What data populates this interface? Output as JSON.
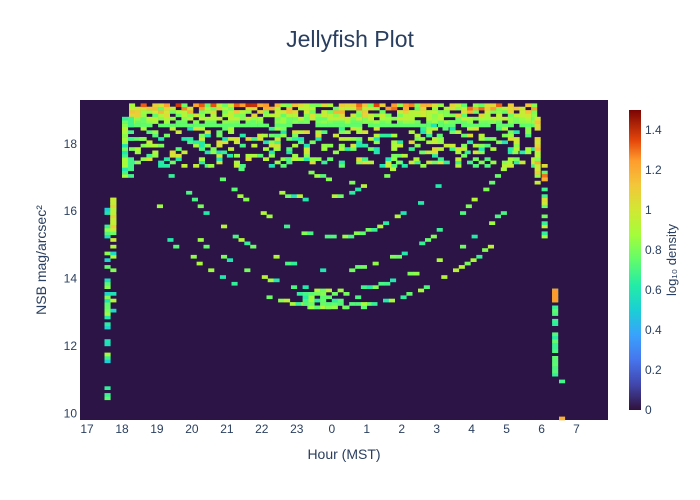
{
  "chart_data": {
    "type": "heatmap",
    "title": "Jellyfish Plot",
    "xlabel": "Hour (MST)",
    "ylabel": "NSB mag/arcsec²",
    "x_tick_labels": [
      "17",
      "18",
      "19",
      "20",
      "21",
      "22",
      "23",
      "0",
      "1",
      "2",
      "3",
      "4",
      "5",
      "6",
      "7"
    ],
    "x_range_hours_after_17": [
      -0.2,
      14.9
    ],
    "y_ticks": [
      10,
      12,
      14,
      16,
      18
    ],
    "y_range": [
      9.8,
      19.3
    ],
    "colorbar": {
      "title": "log₁₀ density",
      "ticks": [
        0,
        0.2,
        0.4,
        0.6,
        0.8,
        1,
        1.2,
        1.4
      ],
      "tick_labels": [
        "0",
        "0.2",
        "0.4",
        "0.6",
        "0.8",
        "1",
        "1.2",
        "1.4"
      ],
      "range": [
        0,
        1.5
      ],
      "colorscale": "Turbo"
    },
    "background_color": "#2d1446",
    "description_values": {
      "dusk_column_hour": 17.5,
      "dawn_column_hour": 6.5,
      "dark_sky_plateau_mag": [
        18.5,
        19.2
      ],
      "moon_arcs_min_mag": 13.1
    }
  }
}
